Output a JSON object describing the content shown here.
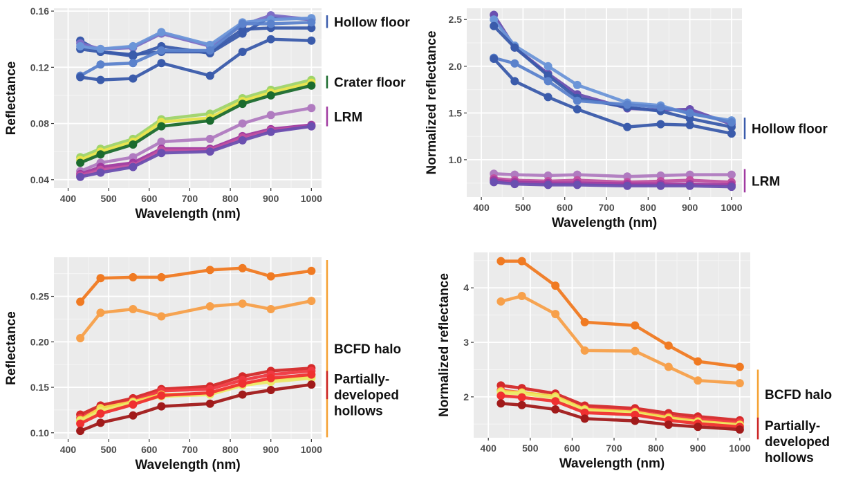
{
  "chart_data": [
    {
      "id": "p1",
      "type": "line",
      "xlabel": "Wavelength (nm)",
      "ylabel": "Reflectance",
      "xlim": [
        365,
        1025
      ],
      "ylim": [
        0.034,
        0.162
      ],
      "xticks": [
        400,
        500,
        600,
        700,
        800,
        900,
        1000
      ],
      "yticks": [
        0.04,
        0.08,
        0.12,
        0.16
      ],
      "ytick_labels": [
        "0.04",
        "0.08",
        "0.12",
        "0.16"
      ],
      "grid": true,
      "x": [
        430,
        480,
        560,
        630,
        750,
        830,
        900,
        1000
      ],
      "groups": [
        {
          "label": "Hollow floor",
          "color": "#3a5bab",
          "y_range": [
            0.157,
            0.148
          ]
        },
        {
          "label": "Crater floor",
          "color": "#1b6b2e",
          "y_range": [
            0.114,
            0.105
          ]
        },
        {
          "label": "LRM",
          "color": "#a03aa0",
          "y_range": [
            0.092,
            0.078
          ]
        }
      ],
      "series": [
        {
          "color": "#3a5bab",
          "values": [
            0.139,
            0.131,
            0.128,
            0.135,
            0.13,
            0.144,
            0.156,
            0.154
          ]
        },
        {
          "color": "#7d6ec6",
          "values": [
            0.137,
            0.133,
            0.134,
            0.144,
            0.135,
            0.15,
            0.157,
            0.154
          ]
        },
        {
          "color": "#3a5bab",
          "values": [
            0.133,
            0.131,
            0.129,
            0.131,
            0.131,
            0.147,
            0.148,
            0.148
          ]
        },
        {
          "color": "#6b95d8",
          "values": [
            0.135,
            0.133,
            0.135,
            0.145,
            0.136,
            0.152,
            0.154,
            0.155
          ]
        },
        {
          "color": "#5b82cc",
          "values": [
            0.114,
            0.122,
            0.123,
            0.132,
            0.132,
            0.151,
            0.151,
            0.152
          ]
        },
        {
          "color": "#3a5bab",
          "values": [
            0.113,
            0.111,
            0.112,
            0.123,
            0.114,
            0.131,
            0.14,
            0.139
          ]
        },
        {
          "color": "#9fd46a",
          "values": [
            0.056,
            0.062,
            0.069,
            0.083,
            0.087,
            0.098,
            0.104,
            0.111
          ]
        },
        {
          "color": "#e8e34a",
          "values": [
            0.054,
            0.06,
            0.067,
            0.081,
            0.084,
            0.096,
            0.102,
            0.109
          ]
        },
        {
          "color": "#1b6b2e",
          "values": [
            0.052,
            0.058,
            0.065,
            0.078,
            0.082,
            0.094,
            0.1,
            0.107
          ]
        },
        {
          "color": "#b07bc0",
          "values": [
            0.046,
            0.052,
            0.056,
            0.067,
            0.069,
            0.08,
            0.086,
            0.091
          ]
        },
        {
          "color": "#a03aa0",
          "values": [
            0.044,
            0.049,
            0.052,
            0.062,
            0.062,
            0.071,
            0.076,
            0.079
          ]
        },
        {
          "color": "#c050a0",
          "values": [
            0.043,
            0.047,
            0.05,
            0.061,
            0.061,
            0.07,
            0.075,
            0.078
          ]
        },
        {
          "color": "#6a4fb0",
          "values": [
            0.042,
            0.045,
            0.049,
            0.059,
            0.06,
            0.068,
            0.074,
            0.078
          ]
        }
      ]
    },
    {
      "id": "p2",
      "type": "line",
      "xlabel": "Wavelength (nm)",
      "ylabel": "Normalized reflectance",
      "xlim": [
        365,
        1025
      ],
      "ylim": [
        0.6,
        2.62
      ],
      "xticks": [
        400,
        500,
        600,
        700,
        800,
        900,
        1000
      ],
      "yticks": [
        1.0,
        1.5,
        2.0,
        2.5
      ],
      "ytick_labels": [
        "1.0",
        "1.5",
        "2.0",
        "2.5"
      ],
      "grid": true,
      "x": [
        430,
        480,
        560,
        630,
        750,
        830,
        900,
        1000
      ],
      "groups": [
        {
          "label": "Hollow floor",
          "color": "#3a5bab",
          "y_range": [
            1.45,
            1.22
          ]
        },
        {
          "label": "LRM",
          "color": "#a03aa0",
          "y_range": [
            0.9,
            0.65
          ]
        }
      ],
      "series": [
        {
          "color": "#6a4fb0",
          "values": [
            2.55,
            2.2,
            1.92,
            1.7,
            1.55,
            1.53,
            1.54,
            1.38
          ]
        },
        {
          "color": "#6b95d8",
          "values": [
            2.5,
            2.22,
            2.0,
            1.8,
            1.61,
            1.58,
            1.49,
            1.42
          ]
        },
        {
          "color": "#3a5bab",
          "values": [
            2.43,
            2.2,
            1.9,
            1.66,
            1.56,
            1.52,
            1.44,
            1.35
          ]
        },
        {
          "color": "#5b82cc",
          "values": [
            2.09,
            2.03,
            1.84,
            1.63,
            1.59,
            1.56,
            1.5,
            1.4
          ]
        },
        {
          "color": "#3a5bab",
          "values": [
            2.08,
            1.84,
            1.67,
            1.54,
            1.35,
            1.38,
            1.37,
            1.28
          ]
        },
        {
          "color": "#b07bc0",
          "values": [
            0.85,
            0.84,
            0.83,
            0.84,
            0.82,
            0.83,
            0.84,
            0.84
          ]
        },
        {
          "color": "#c050a0",
          "values": [
            0.8,
            0.78,
            0.77,
            0.78,
            0.76,
            0.77,
            0.78,
            0.76
          ]
        },
        {
          "color": "#a03aa0",
          "values": [
            0.78,
            0.76,
            0.75,
            0.75,
            0.74,
            0.74,
            0.74,
            0.73
          ]
        },
        {
          "color": "#6a4fb0",
          "values": [
            0.76,
            0.74,
            0.73,
            0.73,
            0.72,
            0.72,
            0.72,
            0.71
          ]
        }
      ]
    },
    {
      "id": "p3",
      "type": "line",
      "xlabel": "Wavelength (nm)",
      "ylabel": "Reflectance",
      "xlim": [
        365,
        1025
      ],
      "ylim": [
        0.093,
        0.293
      ],
      "xticks": [
        400,
        500,
        600,
        700,
        800,
        900,
        1000
      ],
      "yticks": [
        0.1,
        0.15,
        0.2,
        0.25
      ],
      "ytick_labels": [
        "0.10",
        "0.15",
        "0.20",
        "0.25"
      ],
      "grid": true,
      "x": [
        430,
        480,
        560,
        630,
        750,
        830,
        900,
        1000
      ],
      "groups": [
        {
          "label": "BCFD halo",
          "color": "#f5a030",
          "y_range": [
            0.29,
            0.095
          ]
        },
        {
          "label": "Partially-|developed|hollows",
          "color": "#cc2222",
          "y_range": [
            0.168,
            0.137
          ]
        }
      ],
      "series": [
        {
          "color": "#f07a22",
          "values": [
            0.244,
            0.27,
            0.271,
            0.271,
            0.279,
            0.281,
            0.272,
            0.278
          ]
        },
        {
          "color": "#f7a04a",
          "values": [
            0.204,
            0.232,
            0.236,
            0.228,
            0.239,
            0.242,
            0.236,
            0.245
          ]
        },
        {
          "color": "#d42a2a",
          "values": [
            0.12,
            0.13,
            0.138,
            0.148,
            0.151,
            0.162,
            0.168,
            0.171
          ]
        },
        {
          "color": "#f03840",
          "values": [
            0.116,
            0.127,
            0.135,
            0.146,
            0.148,
            0.158,
            0.164,
            0.168
          ]
        },
        {
          "color": "#f3d84a",
          "values": [
            0.114,
            0.127,
            0.134,
            0.142,
            0.143,
            0.153,
            0.158,
            0.161
          ]
        },
        {
          "color": "#ece96a",
          "values": [
            0.113,
            0.124,
            0.133,
            0.14,
            0.142,
            0.152,
            0.156,
            0.16
          ]
        },
        {
          "color": "#f03030",
          "values": [
            0.11,
            0.121,
            0.131,
            0.141,
            0.144,
            0.154,
            0.16,
            0.164
          ]
        },
        {
          "color": "#a11a1a",
          "values": [
            0.102,
            0.111,
            0.119,
            0.129,
            0.132,
            0.142,
            0.147,
            0.153
          ]
        }
      ]
    },
    {
      "id": "p4",
      "type": "line",
      "xlabel": "Wavelength (nm)",
      "ylabel": "Normalized reflectance",
      "xlim": [
        365,
        1025
      ],
      "ylim": [
        1.25,
        4.65
      ],
      "xticks": [
        400,
        500,
        600,
        700,
        800,
        900,
        1000
      ],
      "yticks": [
        2,
        3,
        4
      ],
      "ytick_labels": [
        "2",
        "3",
        "4"
      ],
      "grid": true,
      "x": [
        430,
        480,
        560,
        630,
        750,
        830,
        900,
        1000
      ],
      "groups": [
        {
          "label": "BCFD halo",
          "color": "#f5a030",
          "y_range": [
            2.5,
            1.6
          ]
        },
        {
          "label": "Partially-|developed|hollows",
          "color": "#cc2222",
          "y_range": [
            1.62,
            1.22
          ]
        }
      ],
      "series": [
        {
          "color": "#f07a22",
          "values": [
            4.49,
            4.49,
            4.04,
            3.37,
            3.31,
            2.94,
            2.65,
            2.55
          ]
        },
        {
          "color": "#f7a04a",
          "values": [
            3.75,
            3.85,
            3.52,
            2.85,
            2.84,
            2.55,
            2.3,
            2.25
          ]
        },
        {
          "color": "#d42a2a",
          "values": [
            2.21,
            2.16,
            2.06,
            1.84,
            1.79,
            1.7,
            1.64,
            1.57
          ]
        },
        {
          "color": "#f03840",
          "values": [
            2.12,
            2.08,
            2.0,
            1.79,
            1.74,
            1.64,
            1.59,
            1.53
          ]
        },
        {
          "color": "#f3d84a",
          "values": [
            2.1,
            2.08,
            2.01,
            1.77,
            1.72,
            1.62,
            1.55,
            1.49
          ]
        },
        {
          "color": "#ece96a",
          "values": [
            2.07,
            2.06,
            1.98,
            1.75,
            1.7,
            1.59,
            1.53,
            1.47
          ]
        },
        {
          "color": "#f03030",
          "values": [
            2.02,
            1.99,
            1.92,
            1.71,
            1.67,
            1.57,
            1.51,
            1.45
          ]
        },
        {
          "color": "#a11a1a",
          "values": [
            1.88,
            1.85,
            1.77,
            1.6,
            1.56,
            1.49,
            1.45,
            1.4
          ]
        }
      ]
    }
  ]
}
